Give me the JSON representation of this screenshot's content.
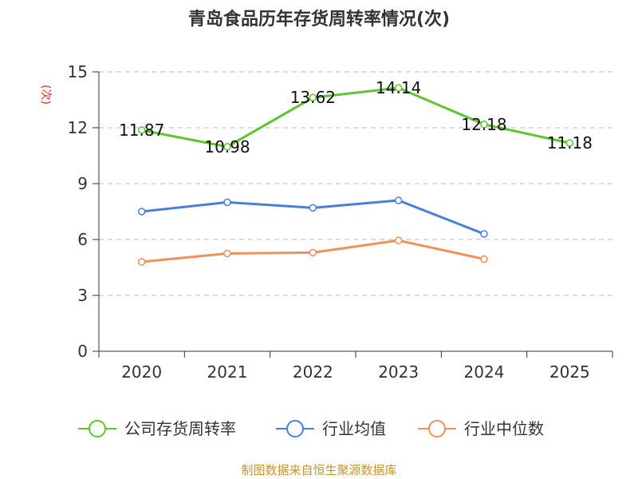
{
  "chart_data": {
    "type": "line",
    "title": "青岛食品历年存货周转率情况(次)",
    "ylabel": "(次)",
    "xlabel": "",
    "categories": [
      "2020",
      "2021",
      "2022",
      "2023",
      "2024",
      "2025"
    ],
    "ylim": [
      0,
      15
    ],
    "yticks": [
      "0",
      "3",
      "6",
      "9",
      "12",
      "15"
    ],
    "grid": true,
    "legend_position": "bottom",
    "series": [
      {
        "name": "公司存货周转率",
        "color": "#5dc52e",
        "values": [
          11.87,
          10.98,
          13.62,
          14.14,
          12.18,
          11.18
        ],
        "labels": [
          "11.87",
          "10.98",
          "13.62",
          "14.14",
          "12.18",
          "11.18"
        ]
      },
      {
        "name": "行业均值",
        "color": "#4a7fd9",
        "values": [
          7.5,
          8.0,
          7.7,
          8.1,
          6.3,
          null
        ]
      },
      {
        "name": "行业中位数",
        "color": "#f0905a",
        "values": [
          4.8,
          5.25,
          5.3,
          5.95,
          4.95,
          null
        ]
      }
    ]
  },
  "source": "制图数据来自恒生聚源数据库"
}
